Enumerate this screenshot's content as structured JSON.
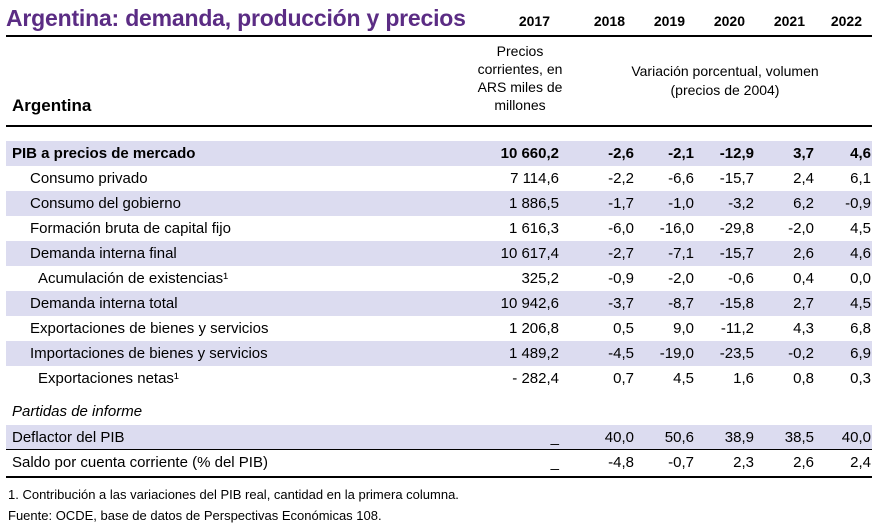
{
  "title": "Argentina: demanda, producción y precios",
  "country": "Argentina",
  "years": [
    "2017",
    "2018",
    "2019",
    "2020",
    "2021",
    "2022"
  ],
  "header_col1": [
    "Precios",
    "corrientes, en",
    "ARS miles de",
    "millones"
  ],
  "header_col2": [
    "Variación porcentual, volumen",
    "(precios de 2004)"
  ],
  "rows": [
    {
      "label": "PIB a precios de mercado",
      "values": [
        "10 660,2",
        "-2,6",
        "-2,1",
        "-12,9",
        "3,7",
        "4,6"
      ]
    },
    {
      "label": "Consumo privado",
      "values": [
        "7 114,6",
        "-2,2",
        "-6,6",
        "-15,7",
        "2,4",
        "6,1"
      ]
    },
    {
      "label": "Consumo del gobierno",
      "values": [
        "1 886,5",
        "-1,7",
        "-1,0",
        "-3,2",
        "6,2",
        "-0,9"
      ]
    },
    {
      "label": "Formación bruta de capital fijo",
      "values": [
        "1 616,3",
        "-6,0",
        "-16,0",
        "-29,8",
        "-2,0",
        "4,5"
      ]
    },
    {
      "label": "Demanda interna final",
      "values": [
        "10 617,4",
        "-2,7",
        "-7,1",
        "-15,7",
        "2,6",
        "4,6"
      ]
    },
    {
      "label": "Acumulación de existencias¹",
      "values": [
        "325,2",
        "-0,9",
        "-2,0",
        "-0,6",
        "0,4",
        "0,0"
      ]
    },
    {
      "label": "Demanda interna total",
      "values": [
        "10 942,6",
        "-3,7",
        "-8,7",
        "-15,8",
        "2,7",
        "4,5"
      ]
    },
    {
      "label": "Exportaciones de bienes y servicios",
      "values": [
        "1 206,8",
        "0,5",
        "9,0",
        "-11,2",
        "4,3",
        "6,8"
      ]
    },
    {
      "label": "Importaciones de bienes y servicios",
      "values": [
        "1 489,2",
        "-4,5",
        "-19,0",
        "-23,5",
        "-0,2",
        "6,9"
      ]
    },
    {
      "label": "Exportaciones netas¹",
      "values": [
        "- 282,4",
        "0,7",
        "4,5",
        "1,6",
        "0,8",
        "0,3"
      ]
    }
  ],
  "memo_label": "Partidas de informe",
  "memo_rows": [
    {
      "label": "Deflactor del PIB",
      "values": [
        "_",
        "40,0",
        "50,6",
        "38,9",
        "38,5",
        "40,0"
      ]
    },
    {
      "label": "Saldo por cuenta corriente (% del PIB)",
      "values": [
        "_",
        "-4,8",
        "-0,7",
        "2,3",
        "2,6",
        "2,4"
      ]
    }
  ],
  "footnote": "1. Contribución a las variaciones del PIB real, cantidad en la primera columna.",
  "source": "Fuente: OCDE, base de datos de Perspectivas Económicas 108."
}
